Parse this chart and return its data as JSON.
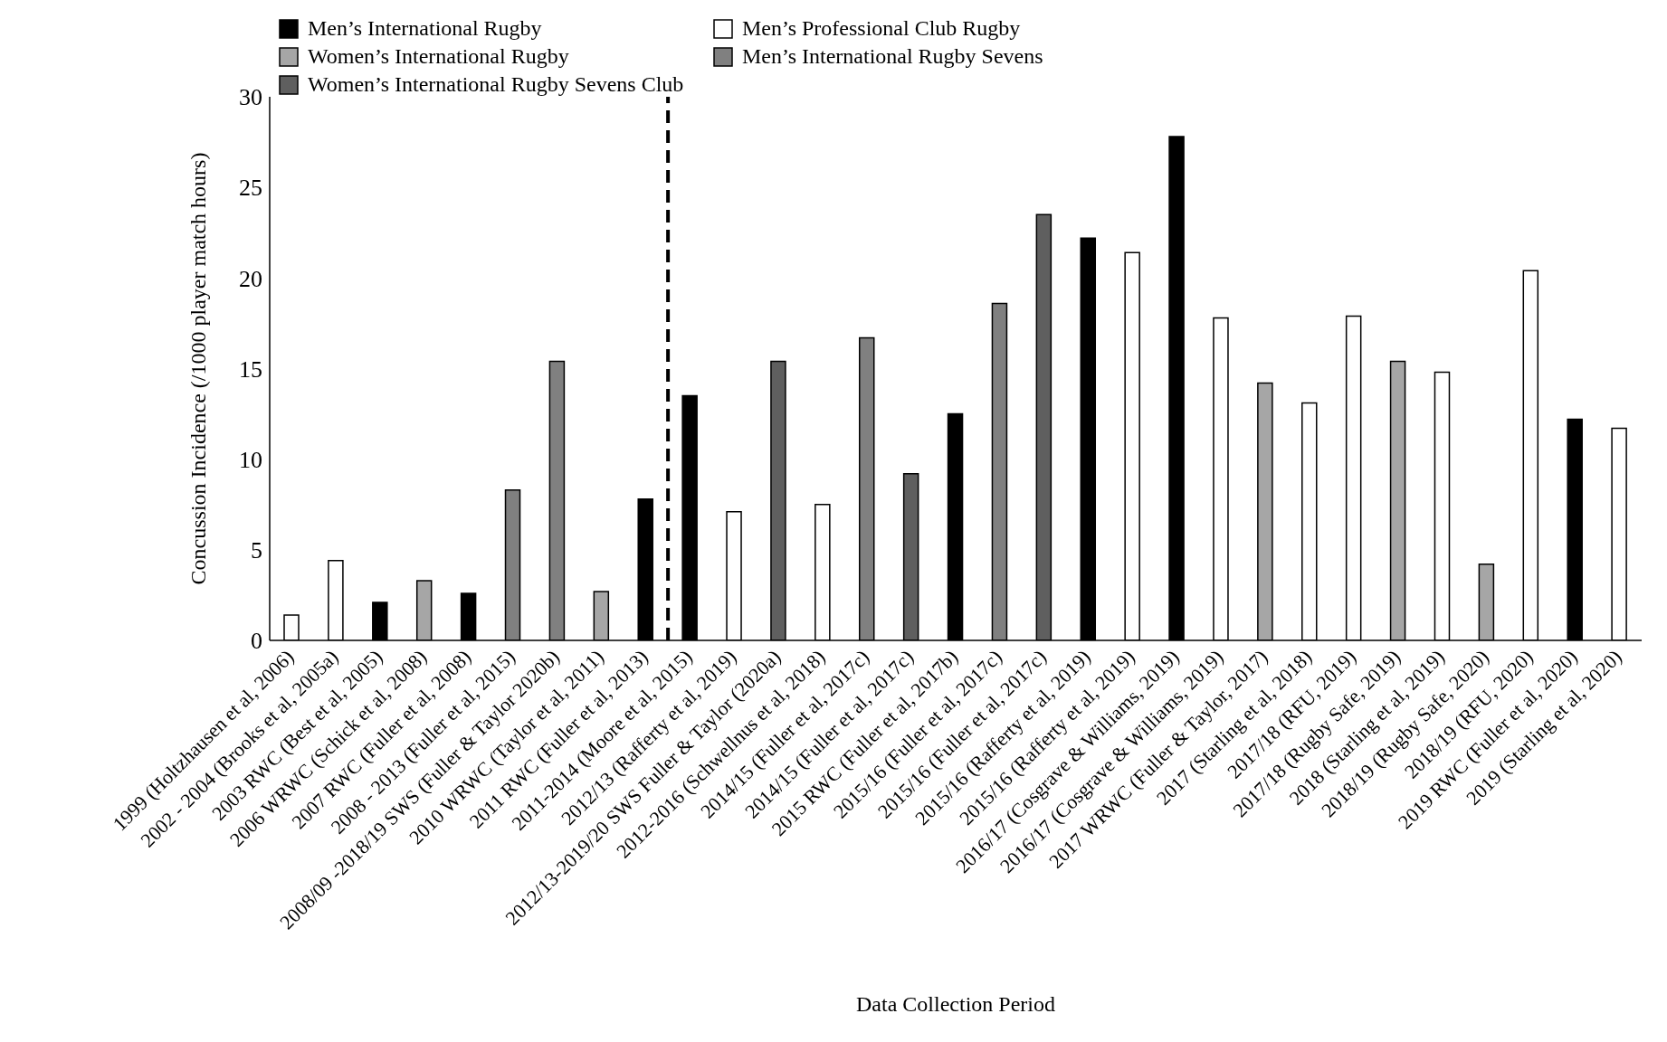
{
  "chart_data": {
    "type": "bar",
    "xlabel": "Data Collection Period",
    "ylabel": "Concussion Incidence (/1000 player match hours)",
    "categories": [
      "1999 (Holtzhausen et al, 2006)",
      "2002 - 2004 (Brooks et al, 2005a)",
      "2003 RWC (Best et al, 2005)",
      "2006 WRWC (Schick et al, 2008)",
      "2007 RWC (Fuller et al, 2008)",
      "2008 - 2013 (Fuller et al, 2015)",
      "2008/09 -2018/19 SWS (Fuller & Taylor 2020b)",
      "2010 WRWC (Taylor et al, 2011)",
      "2011 RWC (Fuller et al, 2013)",
      "2011-2014 (Moore et al, 2015)",
      "2012/13 (Rafferty et al, 2019)",
      "2012/13-2019/20 SWS Fuller & Taylor (2020a)",
      "2012-2016 (Schwellnus et al, 2018)",
      "2014/15 (Fuller et al, 2017c)",
      "2014/15 (Fuller et al, 2017c)",
      "2015 RWC (Fuller et al, 2017b)",
      "2015/16 (Fuller et al, 2017c)",
      "2015/16 (Fuller et al, 2017c)",
      "2015/16 (Rafferty et al, 2019)",
      "2015/16 (Rafferty et al, 2019)",
      "2016/17 (Cosgrave & Williams, 2019)",
      "2016/17 (Cosgrave & Williams, 2019)",
      "2017 WRWC (Fuller & Taylor, 2017)",
      "2017 (Starling et al, 2018)",
      "2017/18 (RFU, 2019)",
      "2017/18 (Rugby Safe, 2019)",
      "2018 (Starling et al, 2019)",
      "2018/19 (Rugby Safe, 2020)",
      "2018/19 (RFU, 2020)",
      "2019 RWC (Fuller et al, 2020)",
      "2019 (Starling et al, 2020)"
    ],
    "series": [
      {
        "name": "Men’s International Rugby",
        "color": "#000000",
        "values": [
          null,
          null,
          2.1,
          null,
          2.6,
          null,
          null,
          null,
          7.8,
          13.5,
          null,
          null,
          null,
          null,
          null,
          12.5,
          null,
          null,
          22.2,
          null,
          27.8,
          null,
          null,
          null,
          null,
          null,
          null,
          null,
          null,
          12.2,
          null
        ]
      },
      {
        "name": "Men’s Professional Club Rugby",
        "color": "#ffffff",
        "values": [
          1.4,
          4.4,
          null,
          null,
          null,
          null,
          null,
          null,
          null,
          null,
          7.1,
          null,
          7.5,
          null,
          null,
          null,
          null,
          null,
          null,
          21.4,
          null,
          17.8,
          null,
          13.1,
          17.9,
          null,
          14.8,
          null,
          20.4,
          null,
          11.7
        ]
      },
      {
        "name": "Women’s International Rugby",
        "color": "#a6a6a6",
        "values": [
          null,
          null,
          null,
          3.3,
          null,
          null,
          null,
          2.7,
          null,
          null,
          null,
          null,
          null,
          null,
          null,
          null,
          null,
          null,
          null,
          null,
          null,
          null,
          14.2,
          null,
          null,
          15.4,
          null,
          4.2,
          null,
          null,
          null
        ]
      },
      {
        "name": "Men’s International Rugby Sevens",
        "color": "#808080",
        "values": [
          null,
          null,
          null,
          null,
          null,
          8.3,
          15.4,
          null,
          null,
          null,
          null,
          null,
          null,
          16.7,
          null,
          null,
          18.6,
          null,
          null,
          null,
          null,
          null,
          null,
          null,
          null,
          null,
          null,
          null,
          null,
          null,
          null
        ]
      },
      {
        "name": "Women’s International Rugby Sevens Club",
        "color": "#5f5f5f",
        "values": [
          null,
          null,
          null,
          null,
          null,
          null,
          null,
          null,
          null,
          null,
          null,
          15.4,
          null,
          null,
          9.2,
          null,
          null,
          23.5,
          null,
          null,
          null,
          null,
          null,
          null,
          null,
          null,
          null,
          null,
          null,
          null,
          null
        ]
      }
    ],
    "stacked": true,
    "ylim": [
      0,
      30
    ],
    "yticks": [
      0,
      5,
      10,
      15,
      20,
      25,
      30
    ],
    "grid": false,
    "legend": "top left"
  }
}
